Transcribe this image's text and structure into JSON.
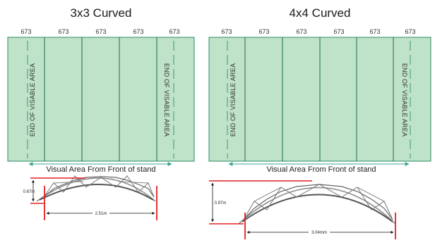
{
  "colors": {
    "panel_fill": "#bfe3c8",
    "panel_stroke": "#2f8a6a",
    "divider": "#1f6b4a",
    "end_line": "#3a9a76",
    "arrow": "#3aa58a",
    "red": "#e02020",
    "truss": "#666666"
  },
  "panels": [
    {
      "title": "3x3 Curved",
      "column_labels": [
        "673",
        "673",
        "673",
        "673",
        "673"
      ],
      "end_label_left": "END OF VISABLE AREA",
      "end_label_right": "END OF VISABLE AREA",
      "caption": "Visual Area From Front of stand",
      "height_label": "0.67m",
      "width_label": "2.51m"
    },
    {
      "title": "4x4 Curved",
      "column_labels": [
        "673",
        "673",
        "673",
        "673",
        "673",
        "673"
      ],
      "end_label_left": "END OF VISABLE AREA",
      "end_label_right": "END OF VISABLE AREA",
      "caption": "Visual Area From Front of stand",
      "height_label": "0.97m",
      "width_label": "3.04mm"
    }
  ]
}
